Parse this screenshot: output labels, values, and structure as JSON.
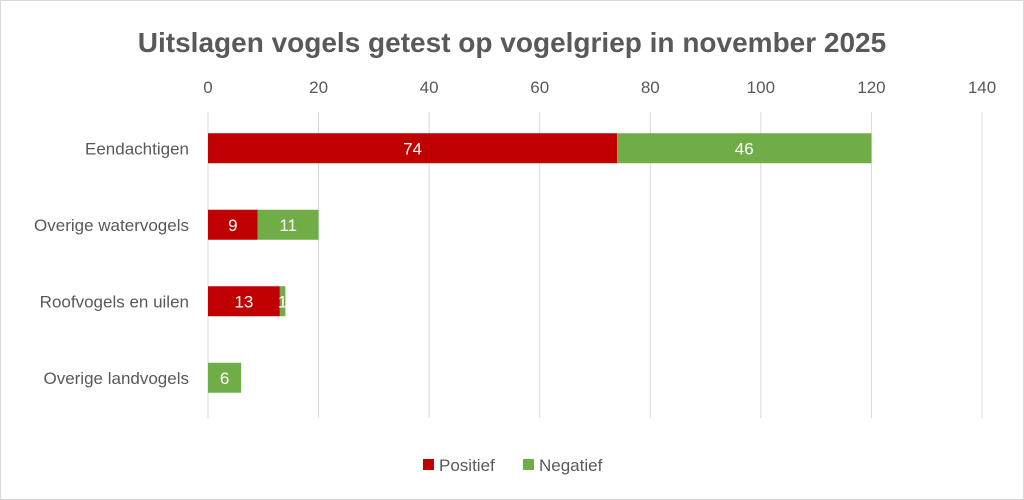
{
  "chart_data": {
    "type": "bar",
    "orientation": "horizontal",
    "stacked": true,
    "title": "Uitslagen vogels getest op vogelgriep in november 2025",
    "categories": [
      "Eendachtigen",
      "Overige watervogels",
      "Roofvogels en uilen",
      "Overige landvogels"
    ],
    "series": [
      {
        "name": "Positief",
        "color": "#c00000",
        "values": [
          74,
          9,
          13,
          0
        ]
      },
      {
        "name": "Negatief",
        "color": "#70ad47",
        "values": [
          46,
          11,
          1,
          6
        ]
      }
    ],
    "xlim": [
      0,
      140
    ],
    "xticks": [
      0,
      20,
      40,
      60,
      80,
      100,
      120,
      140
    ],
    "xlabel": "",
    "ylabel": "",
    "grid": true,
    "legend": "bottom"
  }
}
